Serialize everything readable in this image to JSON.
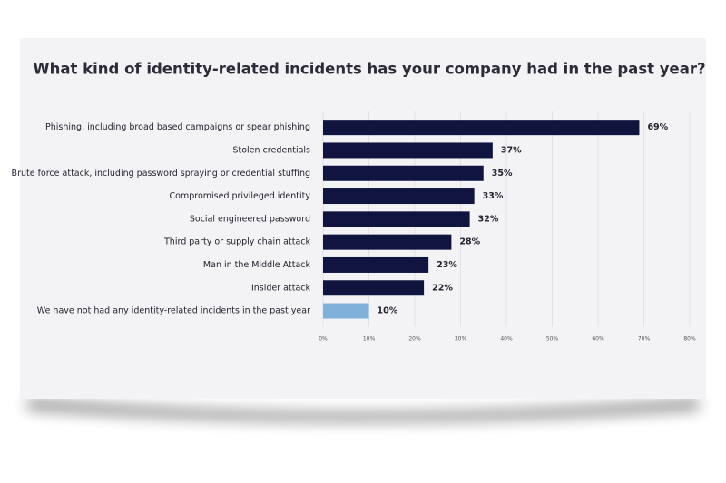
{
  "chart_data": {
    "type": "hbar",
    "title": "What kind of identity-related incidents has your company had in the past year?",
    "categories": [
      "Phishing, including broad based campaigns or spear phishing",
      "Stolen credentials",
      "Brute force attack, including password spraying or credential stuffing",
      "Compromised privileged identity",
      "Social engineered password",
      "Third party or supply chain attack",
      "Man in the Middle Attack",
      "Insider attack",
      "We have not had any identity-related incidents in the past year"
    ],
    "values": [
      69,
      37,
      35,
      33,
      32,
      28,
      23,
      22,
      10
    ],
    "value_labels": [
      "69%",
      "37%",
      "35%",
      "33%",
      "32%",
      "28%",
      "23%",
      "22%",
      "10%"
    ],
    "colors": [
      "#10143f",
      "#10143f",
      "#10143f",
      "#10143f",
      "#10143f",
      "#10143f",
      "#10143f",
      "#10143f",
      "#7fb1da"
    ],
    "xlim": [
      0,
      80
    ],
    "xticks": [
      {
        "value": 0,
        "label": "0%"
      },
      {
        "value": 10,
        "label": "10%"
      },
      {
        "value": 20,
        "label": "20%"
      },
      {
        "value": 30,
        "label": "30%"
      },
      {
        "value": 40,
        "label": "40%"
      },
      {
        "value": 50,
        "label": "50%"
      },
      {
        "value": 60,
        "label": "60%"
      },
      {
        "value": 70,
        "label": "70%"
      },
      {
        "value": 80,
        "label": "80%"
      }
    ],
    "grid": true
  }
}
